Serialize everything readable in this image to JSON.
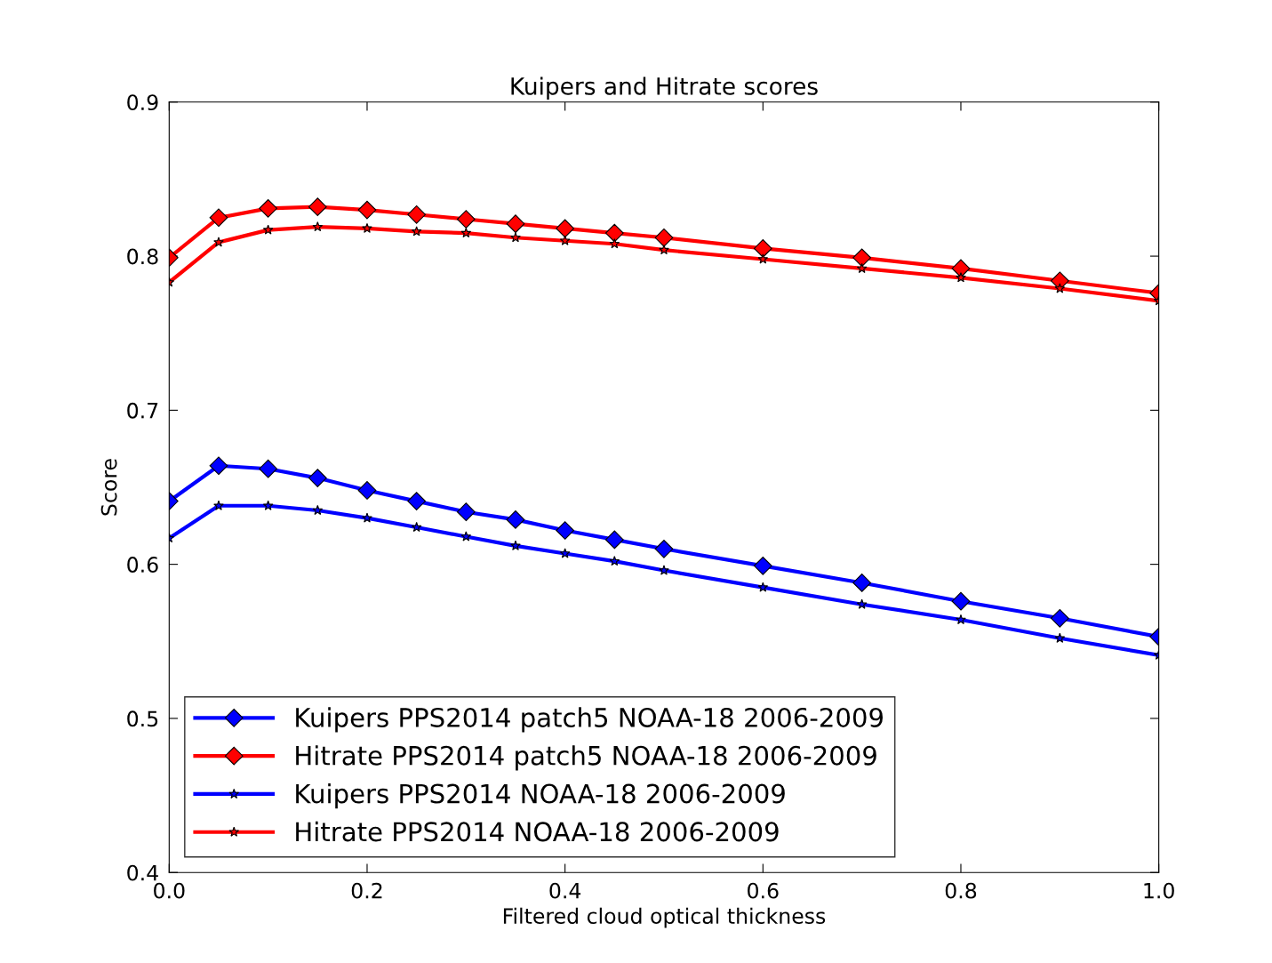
{
  "chart_data": {
    "type": "line",
    "title": "Kuipers and Hitrate scores",
    "xlabel": "Filtered cloud optical thickness",
    "ylabel": "Score",
    "x": [
      0,
      0.05,
      0.1,
      0.15,
      0.2,
      0.25,
      0.3,
      0.35,
      0.4,
      0.45,
      0.5,
      0.6,
      0.7,
      0.8,
      0.9,
      1.0
    ],
    "series": [
      {
        "name": "Kuipers PPS2014 patch5 NOAA-18 2006-2009",
        "color": "#0000ff",
        "marker": "diamond",
        "values": [
          0.641,
          0.664,
          0.662,
          0.656,
          0.648,
          0.641,
          0.634,
          0.629,
          0.622,
          0.616,
          0.61,
          0.599,
          0.588,
          0.576,
          0.565,
          0.553
        ]
      },
      {
        "name": "Hitrate PPS2014 patch5 NOAA-18 2006-2009",
        "color": "#ff0000",
        "marker": "diamond",
        "values": [
          0.799,
          0.825,
          0.831,
          0.832,
          0.83,
          0.827,
          0.824,
          0.821,
          0.818,
          0.815,
          0.812,
          0.805,
          0.799,
          0.792,
          0.784,
          0.776
        ]
      },
      {
        "name": "Kuipers PPS2014 NOAA-18 2006-2009",
        "color": "#0000ff",
        "marker": "star",
        "values": [
          0.617,
          0.638,
          0.638,
          0.635,
          0.63,
          0.624,
          0.618,
          0.612,
          0.607,
          0.602,
          0.596,
          0.585,
          0.574,
          0.564,
          0.552,
          0.541
        ]
      },
      {
        "name": "Hitrate PPS2014 NOAA-18 2006-2009",
        "color": "#ff0000",
        "marker": "star",
        "values": [
          0.783,
          0.809,
          0.817,
          0.819,
          0.818,
          0.816,
          0.815,
          0.812,
          0.81,
          0.808,
          0.804,
          0.798,
          0.792,
          0.786,
          0.779,
          0.771
        ]
      }
    ],
    "xlim": [
      0.0,
      1.0
    ],
    "xticks": [
      {
        "value": 0,
        "label": "0.0"
      },
      0.2,
      0.4,
      0.6,
      0.8,
      {
        "value": 1,
        "label": "1.0"
      }
    ],
    "ylim": [
      0.4,
      0.9
    ],
    "yticks": [
      0.4,
      0.5,
      0.6,
      0.7,
      0.8,
      0.9
    ],
    "grid": false,
    "legend": "bottom left",
    "line_style": "solid"
  }
}
